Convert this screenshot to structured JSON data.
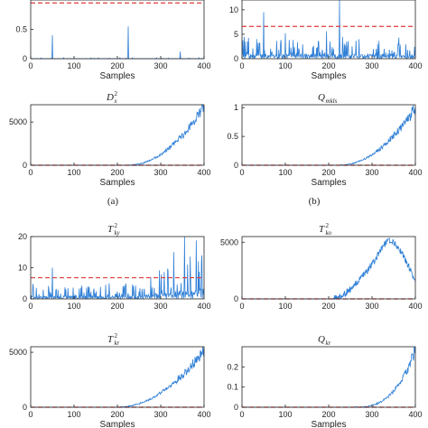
{
  "colors": {
    "series": "#2f7fd6",
    "threshold": "#e03b3b",
    "axis": "#222222"
  },
  "panel_labels": {
    "a": "(a)",
    "b": "(b)"
  },
  "chart_data": [
    {
      "id": "p1",
      "type": "line",
      "title": "",
      "title_sub": "",
      "title_sup": "",
      "xlabel": "Samples",
      "xlim": [
        0,
        400
      ],
      "ylim": [
        0,
        1.0
      ],
      "xticks": [
        0,
        100,
        200,
        300,
        400
      ],
      "yticks": [
        0,
        0.5
      ],
      "threshold": 0.95,
      "profile": "spikes_small",
      "spikes": [
        [
          50,
          0.4
        ],
        [
          225,
          0.55
        ],
        [
          345,
          0.12
        ]
      ]
    },
    {
      "id": "p2",
      "type": "line",
      "title": "",
      "title_sub": "",
      "title_sup": "",
      "xlabel": "Samples",
      "xlim": [
        0,
        400
      ],
      "ylim": [
        0,
        12
      ],
      "xticks": [
        0,
        100,
        200,
        300,
        400
      ],
      "yticks": [
        0,
        5,
        10
      ],
      "threshold": 6.6,
      "profile": "noise",
      "spikes": [
        [
          50,
          9.5
        ],
        [
          225,
          12
        ],
        [
          100,
          5.2
        ],
        [
          195,
          5.6
        ]
      ]
    },
    {
      "id": "p3",
      "type": "line",
      "title": "D",
      "title_sub": "x",
      "title_sup": "2",
      "xlabel": "Samples",
      "xlim": [
        0,
        400
      ],
      "ylim": [
        0,
        7000
      ],
      "xticks": [
        0,
        100,
        200,
        300,
        400
      ],
      "yticks": [
        0,
        5000
      ],
      "threshold": 0,
      "profile": "growth",
      "start": 225,
      "end_value": 6800
    },
    {
      "id": "p4",
      "type": "line",
      "title": "Q",
      "title_sub": "mkls",
      "title_sup": "",
      "xlabel": "Samples",
      "xlim": [
        0,
        400
      ],
      "ylim": [
        0,
        1.05
      ],
      "xticks": [
        0,
        100,
        200,
        300,
        400
      ],
      "yticks": [
        0,
        0.5,
        1
      ],
      "threshold": 0,
      "profile": "growth",
      "start": 225,
      "end_value": 1.0
    },
    {
      "id": "p5",
      "type": "line",
      "title": "T",
      "title_sub": "ky",
      "title_sup": "2",
      "xlabel": "",
      "xlim": [
        0,
        400
      ],
      "ylim": [
        0,
        20
      ],
      "xticks": [
        0,
        100,
        200,
        300,
        400
      ],
      "yticks": [
        0,
        10,
        20
      ],
      "threshold": 6.8,
      "profile": "noise_grow",
      "spikes": [
        [
          50,
          10
        ],
        [
          355,
          20
        ],
        [
          330,
          15
        ],
        [
          395,
          14
        ]
      ]
    },
    {
      "id": "p6",
      "type": "line",
      "title": "T",
      "title_sub": "ko",
      "title_sup": "2",
      "xlabel": "",
      "xlim": [
        0,
        400
      ],
      "ylim": [
        0,
        5500
      ],
      "xticks": [
        0,
        100,
        200,
        300,
        400
      ],
      "yticks": [
        0,
        5000
      ],
      "threshold": 0,
      "profile": "hump",
      "start": 210,
      "peak_x": 335,
      "peak_value": 5200,
      "end_value": 1500
    },
    {
      "id": "p7",
      "type": "line",
      "title": "T",
      "title_sub": "kr",
      "title_sup": "2",
      "xlabel": "Samples",
      "xlim": [
        0,
        400
      ],
      "ylim": [
        0,
        5500
      ],
      "xticks": [
        0,
        100,
        200,
        300,
        400
      ],
      "yticks": [
        0,
        5000
      ],
      "threshold": 0,
      "profile": "growth",
      "start": 200,
      "end_value": 5200
    },
    {
      "id": "p8",
      "type": "line",
      "title": "Q",
      "title_sub": "kr",
      "title_sup": "",
      "xlabel": "Samples",
      "xlim": [
        0,
        400
      ],
      "ylim": [
        0,
        0.3
      ],
      "xticks": [
        0,
        100,
        200,
        300,
        400
      ],
      "yticks": [
        0,
        0.1,
        0.2
      ],
      "threshold": 0,
      "profile": "growth_late",
      "start": 260,
      "end_value": 0.28
    }
  ]
}
